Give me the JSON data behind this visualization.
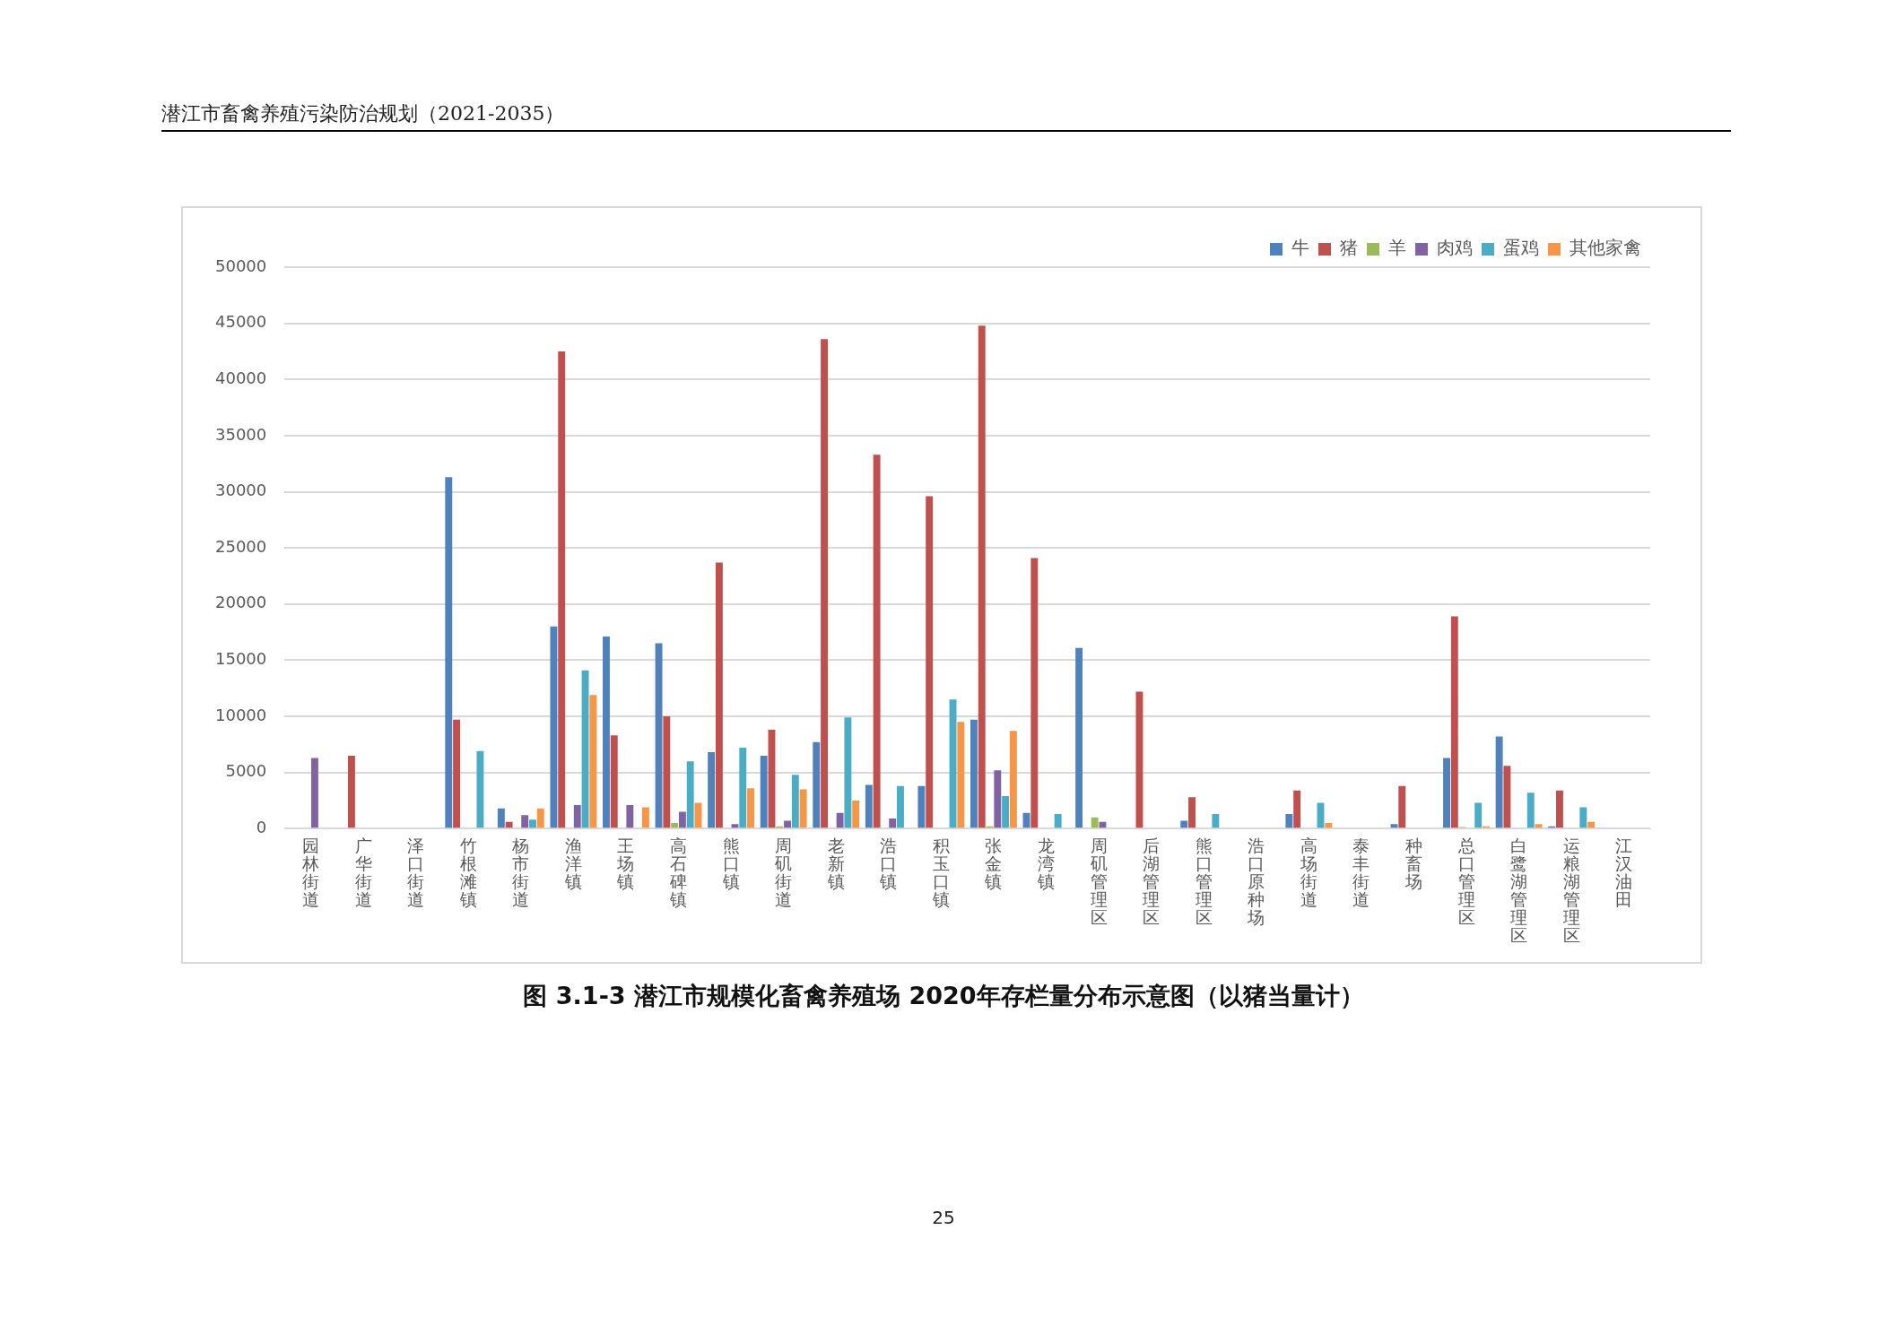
{
  "chart_data": {
    "type": "bar",
    "title": "图 3.1-3   潜江市规模化畜禽养殖场 2020年存栏量分布示意图（以猪当量计）",
    "annotations": [
      "潜江市畜禽养殖污染防治规划（2021-2035）",
      "25"
    ],
    "categories": [
      "园林街道",
      "广华街道",
      "泽口街道",
      "竹根滩镇",
      "杨市街道",
      "渔洋镇",
      "王场镇",
      "高石碑镇",
      "熊口镇",
      "周矶街道",
      "老新镇",
      "浩口镇",
      "积玉口镇",
      "张金镇",
      "龙湾镇",
      "周矶管理区",
      "后湖管理区",
      "熊口管理区",
      "浩口原种场",
      "高场街道",
      "泰丰街道",
      "种畜场",
      "总口管理区",
      "白鹭湖管理区",
      "运粮湖管理区",
      "江汉油田"
    ],
    "series": [
      {
        "name": "牛",
        "color": "#4f81bd",
        "values": [
          0,
          0,
          0,
          31300,
          1800,
          18000,
          17100,
          16500,
          6800,
          6500,
          7700,
          3900,
          3800,
          9700,
          1400,
          16100,
          0,
          700,
          0,
          1300,
          0,
          400,
          6300,
          8200,
          200,
          0
        ]
      },
      {
        "name": "猪",
        "color": "#c0504d",
        "values": [
          0,
          6500,
          0,
          9700,
          600,
          42500,
          8300,
          10000,
          23700,
          8800,
          43600,
          33300,
          29600,
          44800,
          24100,
          0,
          12200,
          2800,
          0,
          3400,
          0,
          3800,
          18900,
          5600,
          3400,
          0
        ]
      },
      {
        "name": "羊",
        "color": "#9bbb59",
        "values": [
          0,
          0,
          0,
          0,
          0,
          0,
          null,
          500,
          0,
          200,
          0,
          0,
          0,
          200,
          0,
          1000,
          0,
          0,
          0,
          0,
          0,
          0,
          150,
          0,
          0,
          0
        ]
      },
      {
        "name": "肉鸡",
        "color": "#8064a2",
        "values": [
          6300,
          0,
          0,
          0,
          1200,
          2100,
          2100,
          1500,
          400,
          700,
          1400,
          900,
          0,
          5200,
          0,
          600,
          0,
          0,
          0,
          0,
          0,
          0,
          0,
          0,
          0,
          0
        ]
      },
      {
        "name": "蛋鸡",
        "color": "#4bacc6",
        "values": [
          0,
          0,
          0,
          6900,
          800,
          14100,
          0,
          6000,
          7200,
          4800,
          9900,
          3800,
          11500,
          2900,
          1300,
          0,
          0,
          1300,
          0,
          2300,
          0,
          0,
          2300,
          3200,
          1900,
          0
        ]
      },
      {
        "name": "其他家禽",
        "color": "#f79646",
        "values": [
          0,
          0,
          0,
          0,
          1800,
          11900,
          1900,
          2300,
          3600,
          3500,
          2500,
          0,
          9500,
          8700,
          0,
          0,
          0,
          0,
          0,
          500,
          0,
          0,
          200,
          400,
          600,
          0
        ]
      }
    ],
    "ylim": [
      0,
      50000
    ],
    "yticks": [
      0,
      5000,
      10000,
      15000,
      20000,
      25000,
      30000,
      35000,
      40000,
      45000,
      50000
    ],
    "grid": "y",
    "legend": "top right"
  }
}
